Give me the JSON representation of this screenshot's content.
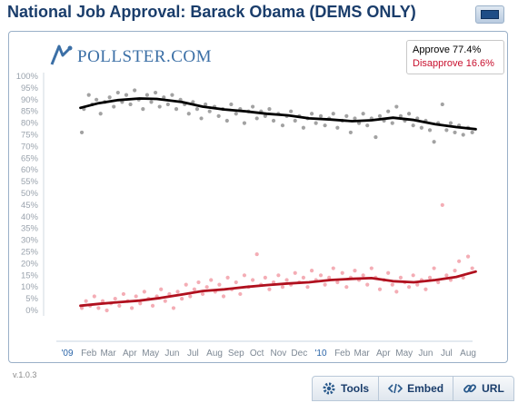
{
  "header": {
    "title": "National Job Approval: Barack Obama (DEMS ONLY)"
  },
  "logo": {
    "text": "POLLSTER.COM"
  },
  "legend": {
    "approve_label": "Approve",
    "approve_value": "77.4%",
    "disapprove_label": "Disapprove",
    "disapprove_value": "16.6%"
  },
  "footer": {
    "version": "v.1.0.3"
  },
  "toolbar": {
    "tools_label": "Tools",
    "embed_label": "Embed",
    "url_label": "URL"
  },
  "colors": {
    "approve": "#000000",
    "approve_points": "#7a7a7a",
    "disapprove": "#b0101e",
    "disapprove_points": "#f08a95",
    "title": "#1a3d6b"
  },
  "chart_data": {
    "type": "scatter",
    "ylim": [
      0,
      100
    ],
    "yticks": [
      0,
      5,
      10,
      15,
      20,
      25,
      30,
      35,
      40,
      45,
      50,
      55,
      60,
      65,
      70,
      75,
      80,
      85,
      90,
      95,
      100
    ],
    "ytick_labels": [
      "0%",
      "5%",
      "10%",
      "15%",
      "20%",
      "25%",
      "30%",
      "35%",
      "40%",
      "45%",
      "50%",
      "55%",
      "60%",
      "65%",
      "70%",
      "75%",
      "80%",
      "85%",
      "90%",
      "95%",
      "100%"
    ],
    "xlim": [
      "2009-01-01",
      "2010-08-31"
    ],
    "xticks": [
      "2009-01-01",
      "2009-02-01",
      "2009-03-01",
      "2009-04-01",
      "2009-05-01",
      "2009-06-01",
      "2009-07-01",
      "2009-08-01",
      "2009-09-01",
      "2009-10-01",
      "2009-11-01",
      "2009-12-01",
      "2010-01-01",
      "2010-02-01",
      "2010-03-01",
      "2010-04-01",
      "2010-05-01",
      "2010-06-01",
      "2010-07-01",
      "2010-08-01"
    ],
    "xtick_labels": [
      "'09",
      "Feb",
      "Mar",
      "Apr",
      "May",
      "Jun",
      "Jul",
      "Aug",
      "Sep",
      "Oct",
      "Nov",
      "Dec",
      "'10",
      "Feb",
      "Mar",
      "Apr",
      "May",
      "Jun",
      "Jul",
      "Aug"
    ],
    "grid": false,
    "legend_position": "top-right",
    "series": [
      {
        "name": "Approve",
        "trend": [
          [
            "2009-01-20",
            86.5
          ],
          [
            "2009-02-15",
            88.5
          ],
          [
            "2009-03-15",
            89.8
          ],
          [
            "2009-04-15",
            90.5
          ],
          [
            "2009-05-10",
            90.3
          ],
          [
            "2009-06-15",
            89.0
          ],
          [
            "2009-07-15",
            87.0
          ],
          [
            "2009-08-15",
            85.8
          ],
          [
            "2009-09-15",
            85.0
          ],
          [
            "2009-10-15",
            84.0
          ],
          [
            "2009-11-15",
            83.3
          ],
          [
            "2009-12-15",
            82.0
          ],
          [
            "2010-01-15",
            81.5
          ],
          [
            "2010-02-15",
            80.8
          ],
          [
            "2010-03-15",
            81.2
          ],
          [
            "2010-04-15",
            82.3
          ],
          [
            "2010-05-15",
            81.3
          ],
          [
            "2010-06-15",
            79.5
          ],
          [
            "2010-07-15",
            78.3
          ],
          [
            "2010-08-12",
            77.4
          ]
        ],
        "points": [
          [
            "2009-01-22",
            76
          ],
          [
            "2009-01-25",
            86
          ],
          [
            "2009-02-01",
            92
          ],
          [
            "2009-02-06",
            88
          ],
          [
            "2009-02-12",
            90
          ],
          [
            "2009-02-18",
            84
          ],
          [
            "2009-02-24",
            89
          ],
          [
            "2009-03-03",
            91
          ],
          [
            "2009-03-09",
            87
          ],
          [
            "2009-03-15",
            93
          ],
          [
            "2009-03-21",
            89
          ],
          [
            "2009-03-27",
            92
          ],
          [
            "2009-04-02",
            88
          ],
          [
            "2009-04-08",
            94
          ],
          [
            "2009-04-14",
            90
          ],
          [
            "2009-04-20",
            86
          ],
          [
            "2009-04-26",
            92
          ],
          [
            "2009-05-02",
            89
          ],
          [
            "2009-05-08",
            93
          ],
          [
            "2009-05-14",
            87
          ],
          [
            "2009-05-20",
            91
          ],
          [
            "2009-05-26",
            88
          ],
          [
            "2009-06-01",
            92
          ],
          [
            "2009-06-07",
            86
          ],
          [
            "2009-06-13",
            90
          ],
          [
            "2009-06-19",
            88
          ],
          [
            "2009-06-25",
            84
          ],
          [
            "2009-07-01",
            89
          ],
          [
            "2009-07-07",
            86
          ],
          [
            "2009-07-13",
            82
          ],
          [
            "2009-07-19",
            88
          ],
          [
            "2009-07-25",
            85
          ],
          [
            "2009-08-01",
            87
          ],
          [
            "2009-08-07",
            83
          ],
          [
            "2009-08-13",
            86
          ],
          [
            "2009-08-19",
            81
          ],
          [
            "2009-08-25",
            88
          ],
          [
            "2009-09-01",
            84
          ],
          [
            "2009-09-07",
            86
          ],
          [
            "2009-09-13",
            80
          ],
          [
            "2009-09-19",
            85
          ],
          [
            "2009-09-25",
            87
          ],
          [
            "2009-10-01",
            82
          ],
          [
            "2009-10-07",
            85
          ],
          [
            "2009-10-13",
            83
          ],
          [
            "2009-10-19",
            86
          ],
          [
            "2009-10-25",
            81
          ],
          [
            "2009-11-01",
            84
          ],
          [
            "2009-11-07",
            79
          ],
          [
            "2009-11-13",
            83
          ],
          [
            "2009-11-19",
            85
          ],
          [
            "2009-11-25",
            81
          ],
          [
            "2009-12-01",
            83
          ],
          [
            "2009-12-07",
            78
          ],
          [
            "2009-12-13",
            82
          ],
          [
            "2009-12-19",
            84
          ],
          [
            "2009-12-25",
            80
          ],
          [
            "2010-01-01",
            83
          ],
          [
            "2010-01-07",
            79
          ],
          [
            "2010-01-13",
            82
          ],
          [
            "2010-01-19",
            84
          ],
          [
            "2010-01-25",
            78
          ],
          [
            "2010-02-01",
            81
          ],
          [
            "2010-02-07",
            83
          ],
          [
            "2010-02-13",
            76
          ],
          [
            "2010-02-19",
            82
          ],
          [
            "2010-02-25",
            80
          ],
          [
            "2010-03-03",
            84
          ],
          [
            "2010-03-09",
            79
          ],
          [
            "2010-03-15",
            82
          ],
          [
            "2010-03-21",
            74
          ],
          [
            "2010-03-27",
            83
          ],
          [
            "2010-04-02",
            81
          ],
          [
            "2010-04-08",
            85
          ],
          [
            "2010-04-14",
            80
          ],
          [
            "2010-04-20",
            87
          ],
          [
            "2010-04-26",
            83
          ],
          [
            "2010-05-02",
            81
          ],
          [
            "2010-05-08",
            84
          ],
          [
            "2010-05-14",
            79
          ],
          [
            "2010-05-20",
            82
          ],
          [
            "2010-05-26",
            78
          ],
          [
            "2010-06-01",
            81
          ],
          [
            "2010-06-07",
            77
          ],
          [
            "2010-06-13",
            72
          ],
          [
            "2010-06-19",
            80
          ],
          [
            "2010-06-25",
            88
          ],
          [
            "2010-07-01",
            77
          ],
          [
            "2010-07-07",
            80
          ],
          [
            "2010-07-13",
            76
          ],
          [
            "2010-07-19",
            79
          ],
          [
            "2010-07-25",
            75
          ],
          [
            "2010-08-01",
            78
          ],
          [
            "2010-08-07",
            76
          ]
        ]
      },
      {
        "name": "Disapprove",
        "trend": [
          [
            "2009-01-20",
            2.0
          ],
          [
            "2009-02-15",
            2.8
          ],
          [
            "2009-03-15",
            3.5
          ],
          [
            "2009-04-15",
            4.2
          ],
          [
            "2009-05-15",
            5.3
          ],
          [
            "2009-06-15",
            6.8
          ],
          [
            "2009-07-15",
            8.3
          ],
          [
            "2009-08-15",
            9.0
          ],
          [
            "2009-09-15",
            10.0
          ],
          [
            "2009-10-15",
            10.8
          ],
          [
            "2009-11-15",
            11.5
          ],
          [
            "2009-12-15",
            12.0
          ],
          [
            "2010-01-15",
            13.0
          ],
          [
            "2010-02-15",
            13.5
          ],
          [
            "2010-03-15",
            13.8
          ],
          [
            "2010-04-15",
            12.5
          ],
          [
            "2010-05-15",
            12.0
          ],
          [
            "2010-06-15",
            13.0
          ],
          [
            "2010-07-15",
            14.3
          ],
          [
            "2010-08-12",
            16.6
          ]
        ],
        "points": [
          [
            "2009-01-22",
            1
          ],
          [
            "2009-01-28",
            4
          ],
          [
            "2009-02-03",
            2
          ],
          [
            "2009-02-09",
            6
          ],
          [
            "2009-02-15",
            1
          ],
          [
            "2009-02-21",
            4
          ],
          [
            "2009-02-27",
            0
          ],
          [
            "2009-03-05",
            3
          ],
          [
            "2009-03-11",
            5
          ],
          [
            "2009-03-17",
            2
          ],
          [
            "2009-03-23",
            7
          ],
          [
            "2009-03-29",
            4
          ],
          [
            "2009-04-04",
            1
          ],
          [
            "2009-04-10",
            6
          ],
          [
            "2009-04-16",
            3
          ],
          [
            "2009-04-22",
            8
          ],
          [
            "2009-04-28",
            5
          ],
          [
            "2009-05-04",
            2
          ],
          [
            "2009-05-10",
            6
          ],
          [
            "2009-05-16",
            9
          ],
          [
            "2009-05-22",
            4
          ],
          [
            "2009-05-28",
            7
          ],
          [
            "2009-06-03",
            1
          ],
          [
            "2009-06-09",
            8
          ],
          [
            "2009-06-15",
            5
          ],
          [
            "2009-06-21",
            11
          ],
          [
            "2009-06-27",
            6
          ],
          [
            "2009-07-03",
            9
          ],
          [
            "2009-07-09",
            12
          ],
          [
            "2009-07-15",
            7
          ],
          [
            "2009-07-21",
            10
          ],
          [
            "2009-07-27",
            13
          ],
          [
            "2009-08-02",
            8
          ],
          [
            "2009-08-08",
            11
          ],
          [
            "2009-08-14",
            6
          ],
          [
            "2009-08-20",
            14
          ],
          [
            "2009-08-26",
            9
          ],
          [
            "2009-09-01",
            12
          ],
          [
            "2009-09-07",
            7
          ],
          [
            "2009-09-13",
            15
          ],
          [
            "2009-09-19",
            10
          ],
          [
            "2009-09-25",
            13
          ],
          [
            "2009-10-01",
            24
          ],
          [
            "2009-10-07",
            11
          ],
          [
            "2009-10-13",
            14
          ],
          [
            "2009-10-19",
            9
          ],
          [
            "2009-10-25",
            12
          ],
          [
            "2009-11-01",
            15
          ],
          [
            "2009-11-07",
            10
          ],
          [
            "2009-11-13",
            13
          ],
          [
            "2009-11-19",
            11
          ],
          [
            "2009-11-25",
            16
          ],
          [
            "2009-12-01",
            12
          ],
          [
            "2009-12-07",
            14
          ],
          [
            "2009-12-13",
            10
          ],
          [
            "2009-12-19",
            17
          ],
          [
            "2009-12-25",
            13
          ],
          [
            "2010-01-01",
            15
          ],
          [
            "2010-01-07",
            11
          ],
          [
            "2010-01-13",
            14
          ],
          [
            "2010-01-19",
            18
          ],
          [
            "2010-01-25",
            12
          ],
          [
            "2010-02-01",
            16
          ],
          [
            "2010-02-07",
            10
          ],
          [
            "2010-02-13",
            14
          ],
          [
            "2010-02-19",
            17
          ],
          [
            "2010-02-25",
            13
          ],
          [
            "2010-03-03",
            15
          ],
          [
            "2010-03-09",
            11
          ],
          [
            "2010-03-15",
            18
          ],
          [
            "2010-03-21",
            14
          ],
          [
            "2010-03-27",
            9
          ],
          [
            "2010-04-02",
            13
          ],
          [
            "2010-04-08",
            16
          ],
          [
            "2010-04-14",
            11
          ],
          [
            "2010-04-20",
            8
          ],
          [
            "2010-04-26",
            14
          ],
          [
            "2010-05-02",
            12
          ],
          [
            "2010-05-08",
            10
          ],
          [
            "2010-05-14",
            15
          ],
          [
            "2010-05-20",
            11
          ],
          [
            "2010-05-26",
            13
          ],
          [
            "2010-06-01",
            9
          ],
          [
            "2010-06-07",
            14
          ],
          [
            "2010-06-13",
            18
          ],
          [
            "2010-06-19",
            12
          ],
          [
            "2010-06-25",
            45
          ],
          [
            "2010-07-01",
            15
          ],
          [
            "2010-07-07",
            13
          ],
          [
            "2010-07-13",
            17
          ],
          [
            "2010-07-19",
            21
          ],
          [
            "2010-07-25",
            14
          ],
          [
            "2010-08-01",
            23
          ],
          [
            "2010-08-07",
            18
          ]
        ]
      }
    ]
  }
}
